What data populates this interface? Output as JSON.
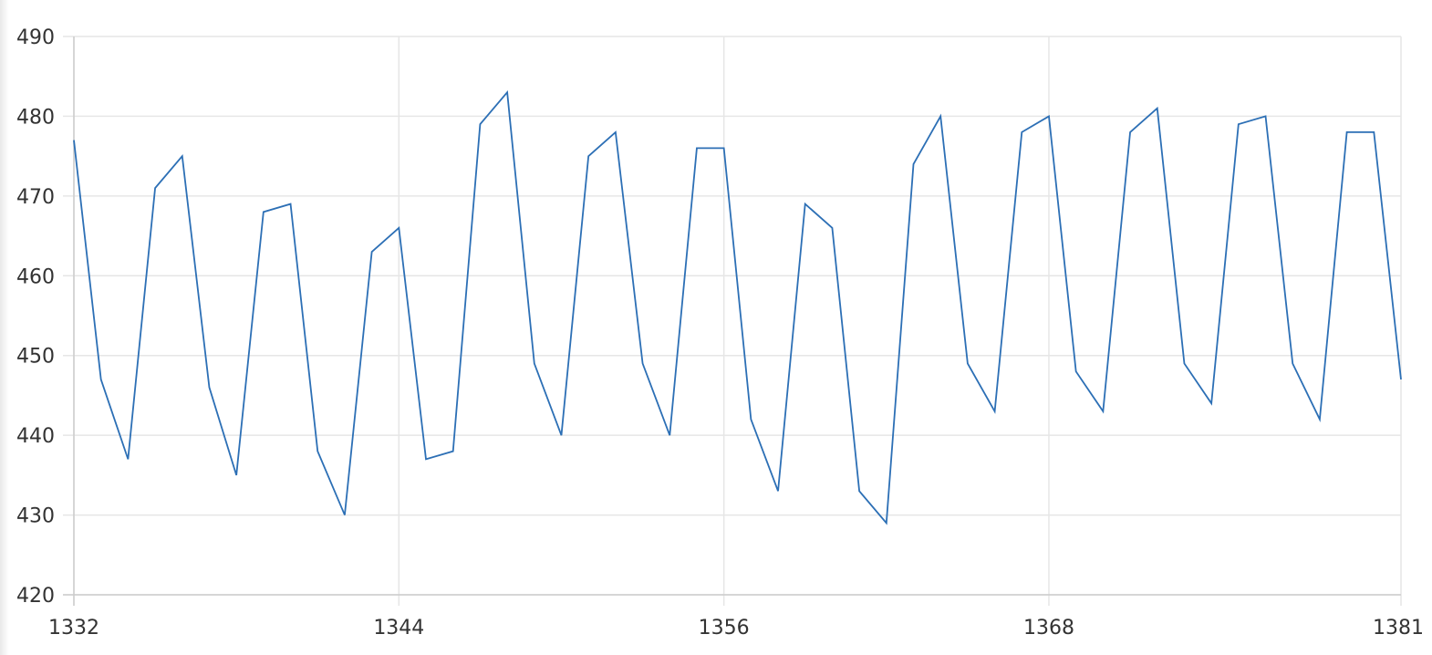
{
  "chart_data": {
    "type": "line",
    "title": "",
    "xlabel": "",
    "ylabel": "",
    "xlim": [
      1332,
      1381
    ],
    "ylim": [
      420,
      490
    ],
    "grid": true,
    "legend": "none",
    "x_ticks": [
      "1332",
      "1344",
      "1356",
      "1368",
      "1381"
    ],
    "y_ticks": [
      "420",
      "430",
      "440",
      "450",
      "460",
      "470",
      "480",
      "490"
    ],
    "colors": {
      "series": "#2c6fb5",
      "grid": "#e6e6e6",
      "axis": "#cccccc",
      "text": "#333333"
    },
    "x": [
      1332,
      1333,
      1334,
      1335,
      1336,
      1337,
      1338,
      1339,
      1340,
      1341,
      1342,
      1343,
      1344,
      1345,
      1346,
      1347,
      1348,
      1349,
      1350,
      1351,
      1352,
      1353,
      1354,
      1355,
      1356,
      1357,
      1358,
      1359,
      1360,
      1361,
      1362,
      1363,
      1364,
      1365,
      1366,
      1367,
      1368,
      1369,
      1370,
      1371,
      1372,
      1373,
      1374,
      1375,
      1376,
      1377,
      1378,
      1379,
      1380,
      1381
    ],
    "series": [
      {
        "values": [
          477,
          447,
          437,
          471,
          475,
          446,
          435,
          468,
          469,
          438,
          430,
          463,
          466,
          437,
          438,
          479,
          483,
          449,
          440,
          475,
          478,
          449,
          440,
          476,
          476,
          442,
          433,
          469,
          466,
          433,
          429,
          474,
          480,
          449,
          443,
          478,
          480,
          448,
          443,
          478,
          481,
          449,
          444,
          479,
          480,
          449,
          442,
          478,
          478,
          447
        ]
      }
    ]
  }
}
